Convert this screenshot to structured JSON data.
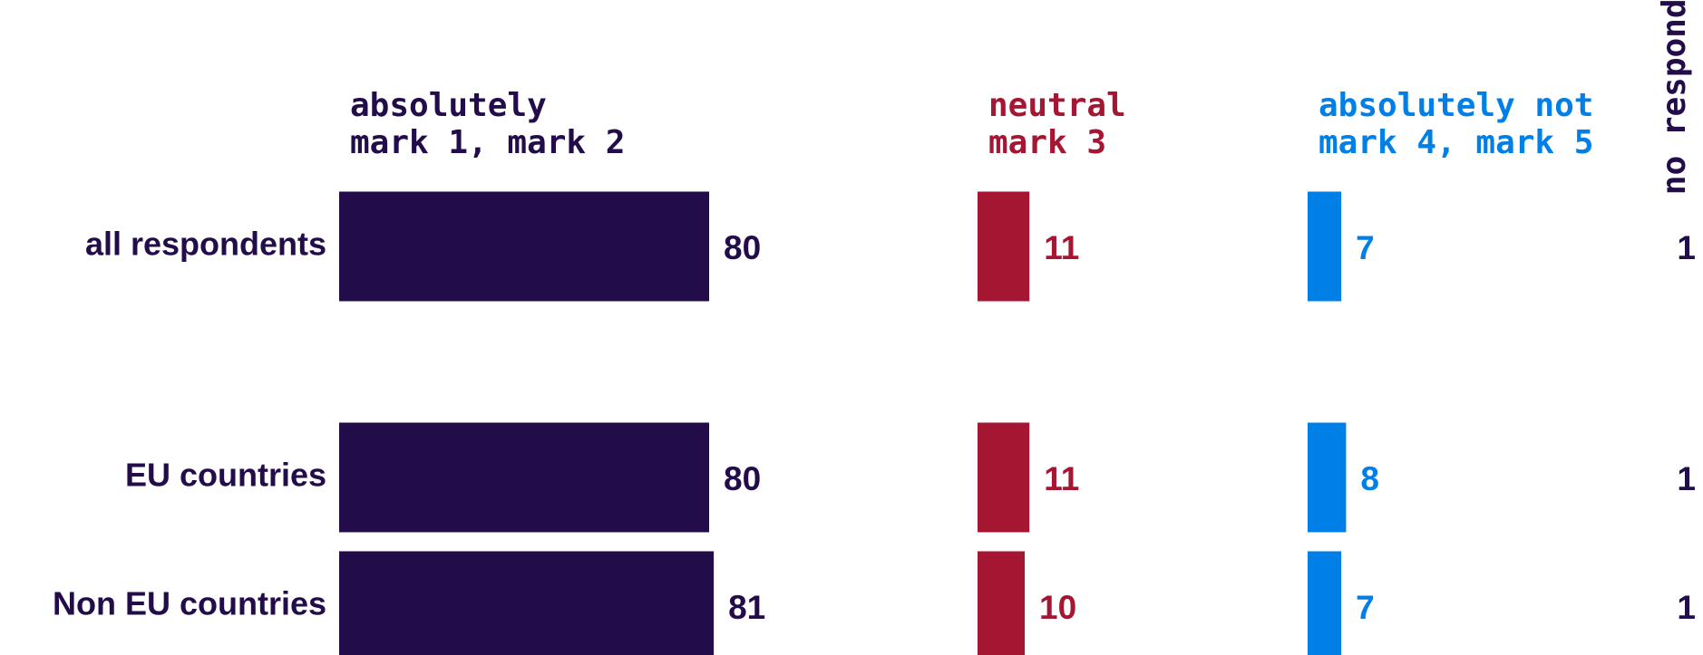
{
  "chart_data": {
    "type": "bar",
    "orientation": "horizontal",
    "categories": [
      "all respondents",
      "EU countries",
      "Non EU countries"
    ],
    "series": [
      {
        "name": "absolutely",
        "marks": "mark 1, mark 2",
        "color": "#230c4a",
        "values": [
          80,
          80,
          81
        ]
      },
      {
        "name": "neutral",
        "marks": "mark 3",
        "color": "#a41631",
        "values": [
          11,
          11,
          10
        ]
      },
      {
        "name": "absolutely not",
        "marks": "mark 4, mark 5",
        "color": "#0080e6",
        "values": [
          7,
          8,
          7
        ]
      },
      {
        "name": "no responds",
        "color": "#230c4a",
        "values": [
          1,
          1,
          1
        ]
      }
    ]
  }
}
